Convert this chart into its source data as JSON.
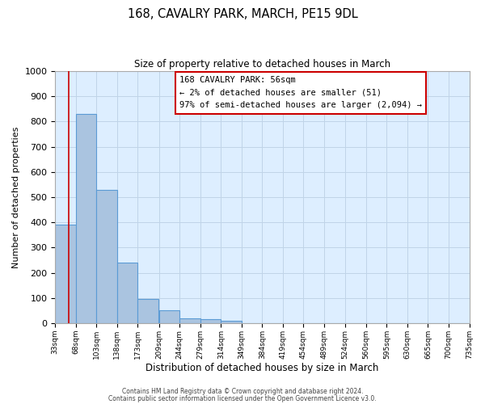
{
  "title": "168, CAVALRY PARK, MARCH, PE15 9DL",
  "subtitle": "Size of property relative to detached houses in March",
  "xlabel": "Distribution of detached houses by size in March",
  "ylabel": "Number of detached properties",
  "bar_left_edges": [
    33,
    68,
    103,
    138,
    173,
    209,
    244,
    279,
    314,
    349,
    384,
    419,
    454,
    489,
    524,
    560,
    595,
    630,
    665,
    700
  ],
  "bar_heights": [
    390,
    830,
    530,
    240,
    95,
    50,
    20,
    15,
    10,
    0,
    0,
    0,
    0,
    0,
    0,
    0,
    0,
    0,
    0,
    0
  ],
  "bin_width": 35,
  "bar_color": "#aac4e0",
  "bar_edge_color": "#5b9bd5",
  "tick_labels": [
    "33sqm",
    "68sqm",
    "103sqm",
    "138sqm",
    "173sqm",
    "209sqm",
    "244sqm",
    "279sqm",
    "314sqm",
    "349sqm",
    "384sqm",
    "419sqm",
    "454sqm",
    "489sqm",
    "524sqm",
    "560sqm",
    "595sqm",
    "630sqm",
    "665sqm",
    "700sqm",
    "735sqm"
  ],
  "ylim": [
    0,
    1000
  ],
  "yticks": [
    0,
    100,
    200,
    300,
    400,
    500,
    600,
    700,
    800,
    900,
    1000
  ],
  "property_line_x": 56,
  "property_line_color": "#cc0000",
  "annotation_box_text": "168 CAVALRY PARK: 56sqm\n← 2% of detached houses are smaller (51)\n97% of semi-detached houses are larger (2,094) →",
  "annotation_box_color": "#ffffff",
  "annotation_box_edge_color": "#cc0000",
  "footer_line1": "Contains HM Land Registry data © Crown copyright and database right 2024.",
  "footer_line2": "Contains public sector information licensed under the Open Government Licence v3.0.",
  "background_color": "#ffffff",
  "axes_bg_color": "#ddeeff",
  "grid_color": "#c0d4e8"
}
